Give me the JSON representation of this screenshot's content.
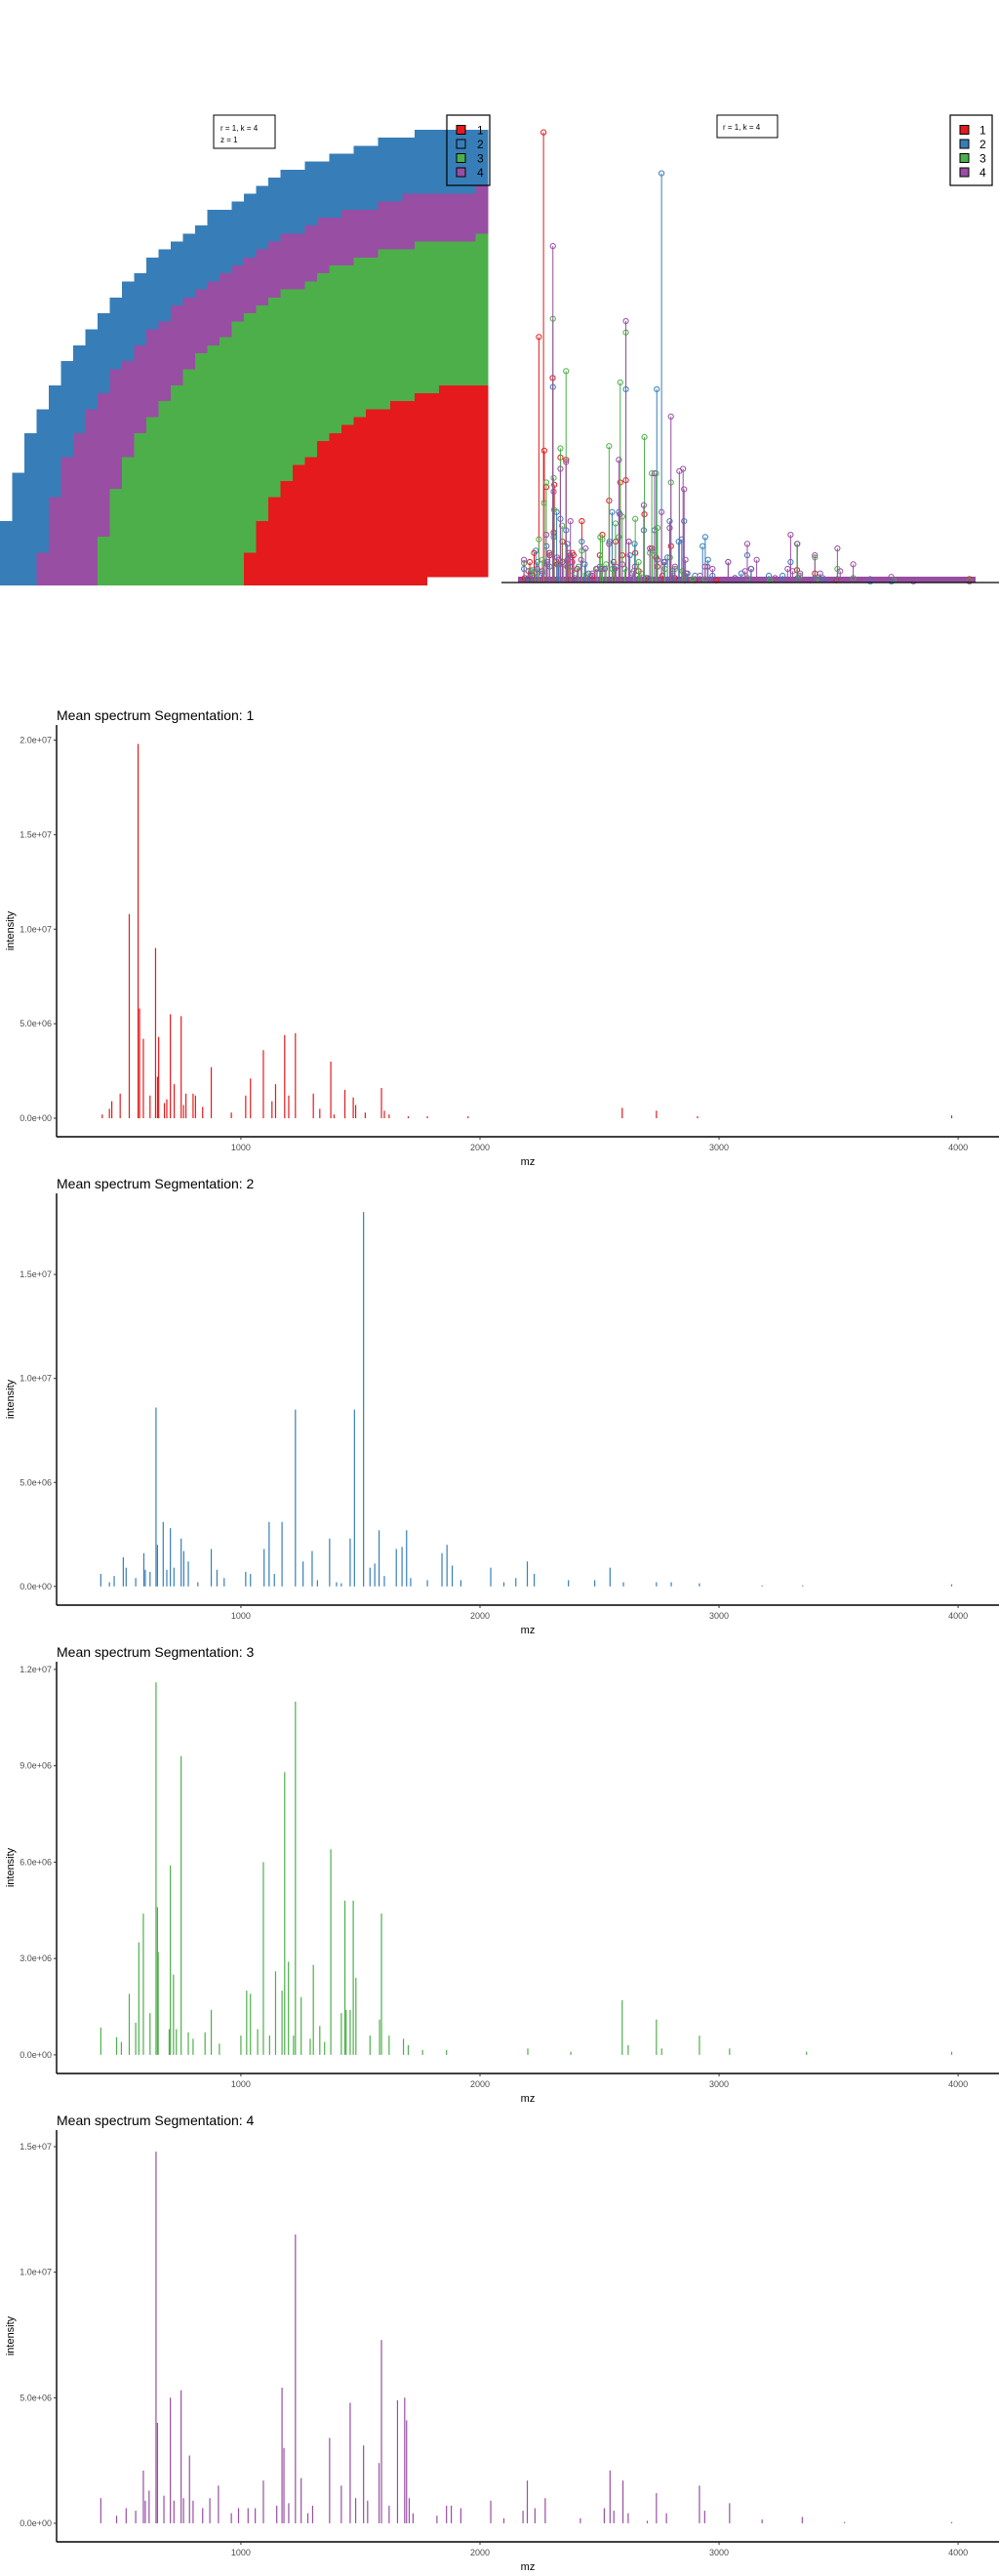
{
  "colors": {
    "1": "#E41A1C",
    "2": "#377EB8",
    "3": "#4DAF4A",
    "4": "#984EA3"
  },
  "segmentation_image": {
    "label_lines": [
      "r = 1, k = 4",
      "z = 1"
    ],
    "legend": [
      "1",
      "2",
      "3",
      "4"
    ]
  },
  "spectra_overlay": {
    "label": "r = 1, k = 4",
    "legend": [
      "1",
      "2",
      "3",
      "4"
    ]
  },
  "chart_data": [
    {
      "type": "bar",
      "segment": "1",
      "title": "Mean spectrum  Segmentation: 1",
      "xlabel": "mz",
      "ylabel": "intensity",
      "xlim": [
        229,
        4171
      ],
      "ylim": [
        -980000,
        20800000
      ],
      "x_ticks": [
        1000,
        2000,
        3000,
        4000
      ],
      "x_tick_labels": [
        "1000",
        "2000",
        "3000",
        "4000"
      ],
      "y_ticks": [
        0,
        5000000,
        10000000,
        15000000,
        20000000
      ],
      "y_tick_labels": [
        "0.0e+00",
        "5.0e+06",
        "1.0e+07",
        "1.5e+07",
        "2.0e+07"
      ],
      "peaks": [
        [
          420,
          200000.0
        ],
        [
          450,
          500000.0
        ],
        [
          460,
          900000.0
        ],
        [
          495,
          1300000.0
        ],
        [
          533,
          10800000.0
        ],
        [
          570,
          19800000.0
        ],
        [
          576,
          5800000.0
        ],
        [
          592,
          4200000.0
        ],
        [
          620,
          1200000.0
        ],
        [
          643,
          9000000.0
        ],
        [
          651,
          2200000.0
        ],
        [
          656,
          4300000.0
        ],
        [
          680,
          800000.0
        ],
        [
          690,
          1000000.0
        ],
        [
          705,
          5500000.0
        ],
        [
          721,
          1800000.0
        ],
        [
          750,
          5400000.0
        ],
        [
          760,
          700000.0
        ],
        [
          770,
          1300000.0
        ],
        [
          800,
          1300000.0
        ],
        [
          810,
          1200000.0
        ],
        [
          840,
          600000.0
        ],
        [
          876,
          2700000.0
        ],
        [
          960,
          300000.0
        ],
        [
          1020,
          1200000.0
        ],
        [
          1040,
          2100000.0
        ],
        [
          1094,
          3600000.0
        ],
        [
          1130,
          900000.0
        ],
        [
          1145,
          1800000.0
        ],
        [
          1183,
          4400000.0
        ],
        [
          1200,
          1200000.0
        ],
        [
          1228,
          4500000.0
        ],
        [
          1303,
          1300000.0
        ],
        [
          1330,
          500000.0
        ],
        [
          1376,
          3000000.0
        ],
        [
          1390,
          200000.0
        ],
        [
          1435,
          1500000.0
        ],
        [
          1470,
          1100000.0
        ],
        [
          1480,
          700000.0
        ],
        [
          1520,
          300000.0
        ],
        [
          1588,
          1600000.0
        ],
        [
          1600,
          400000.0
        ],
        [
          1620,
          200000.0
        ],
        [
          1700,
          100000.0
        ],
        [
          1780,
          100000.0
        ],
        [
          1950,
          100000.0
        ],
        [
          2595,
          550000.0
        ],
        [
          2738,
          400000.0
        ],
        [
          2910,
          100000.0
        ],
        [
          3973,
          150000.0
        ]
      ]
    },
    {
      "type": "bar",
      "segment": "2",
      "title": "Mean spectrum  Segmentation: 2",
      "xlabel": "mz",
      "ylabel": "intensity",
      "xlim": [
        229,
        4171
      ],
      "ylim": [
        -900000,
        18900000
      ],
      "x_ticks": [
        1000,
        2000,
        3000,
        4000
      ],
      "x_tick_labels": [
        "1000",
        "2000",
        "3000",
        "4000"
      ],
      "y_ticks": [
        0,
        5000000,
        10000000,
        15000000
      ],
      "y_tick_labels": [
        "0.0e+00",
        "5.0e+06",
        "1.0e+07",
        "1.5e+07"
      ],
      "peaks": [
        [
          414,
          600000.0
        ],
        [
          450,
          200000.0
        ],
        [
          470,
          500000.0
        ],
        [
          508,
          1400000.0
        ],
        [
          520,
          900000.0
        ],
        [
          560,
          400000.0
        ],
        [
          594,
          1600000.0
        ],
        [
          600,
          800000.0
        ],
        [
          620,
          700000.0
        ],
        [
          645,
          8600000.0
        ],
        [
          651,
          2000000.0
        ],
        [
          675,
          3100000.0
        ],
        [
          690,
          800000.0
        ],
        [
          705,
          2800000.0
        ],
        [
          720,
          900000.0
        ],
        [
          750,
          2300000.0
        ],
        [
          761,
          1700000.0
        ],
        [
          780,
          1200000.0
        ],
        [
          820,
          200000.0
        ],
        [
          876,
          1800000.0
        ],
        [
          900,
          800000.0
        ],
        [
          930,
          400000.0
        ],
        [
          1020,
          700000.0
        ],
        [
          1040,
          600000.0
        ],
        [
          1097,
          1800000.0
        ],
        [
          1118,
          3100000.0
        ],
        [
          1140,
          600000.0
        ],
        [
          1172,
          3100000.0
        ],
        [
          1228,
          8500000.0
        ],
        [
          1260,
          1200000.0
        ],
        [
          1298,
          1700000.0
        ],
        [
          1320,
          300000.0
        ],
        [
          1371,
          2300000.0
        ],
        [
          1400,
          200000.0
        ],
        [
          1420,
          150000.0
        ],
        [
          1457,
          2300000.0
        ],
        [
          1475,
          8500000.0
        ],
        [
          1513,
          18000000.0
        ],
        [
          1540,
          900000.0
        ],
        [
          1560,
          1100000.0
        ],
        [
          1578,
          2700000.0
        ],
        [
          1600,
          500000.0
        ],
        [
          1650,
          1800000.0
        ],
        [
          1674,
          1900000.0
        ],
        [
          1693,
          2700000.0
        ],
        [
          1710,
          400000.0
        ],
        [
          1780,
          300000.0
        ],
        [
          1841,
          1600000.0
        ],
        [
          1862,
          2000000.0
        ],
        [
          1884,
          1000000.0
        ],
        [
          1920,
          300000.0
        ],
        [
          2045,
          900000.0
        ],
        [
          2100,
          200000.0
        ],
        [
          2150,
          400000.0
        ],
        [
          2198,
          1200000.0
        ],
        [
          2227,
          600000.0
        ],
        [
          2370,
          300000.0
        ],
        [
          2480,
          300000.0
        ],
        [
          2544,
          900000.0
        ],
        [
          2600,
          200000.0
        ],
        [
          2738,
          200000.0
        ],
        [
          2800,
          200000.0
        ],
        [
          2918,
          150000.0
        ],
        [
          3180,
          50000.0
        ],
        [
          3350,
          50000.0
        ],
        [
          3973,
          100000.0
        ]
      ]
    },
    {
      "type": "bar",
      "segment": "3",
      "title": "Mean spectrum  Segmentation: 3",
      "xlabel": "mz",
      "ylabel": "intensity",
      "xlim": [
        229,
        4171
      ],
      "ylim": [
        -580000,
        12240000
      ],
      "x_ticks": [
        1000,
        2000,
        3000,
        4000
      ],
      "x_tick_labels": [
        "1000",
        "2000",
        "3000",
        "4000"
      ],
      "y_ticks": [
        0,
        3000000,
        6000000,
        9000000,
        12000000
      ],
      "y_tick_labels": [
        "0.0e+00",
        "3.0e+06",
        "6.0e+06",
        "9.0e+06",
        "1.2e+07"
      ],
      "peaks": [
        [
          414,
          850000.0
        ],
        [
          480,
          550000.0
        ],
        [
          500,
          400000.0
        ],
        [
          533,
          1900000.0
        ],
        [
          560,
          1000000.0
        ],
        [
          573,
          3500000.0
        ],
        [
          592,
          4400000.0
        ],
        [
          620,
          1300000.0
        ],
        [
          645,
          11600000.0
        ],
        [
          651,
          4600000.0
        ],
        [
          654,
          3200000.0
        ],
        [
          700,
          800000.0
        ],
        [
          705,
          5900000.0
        ],
        [
          718,
          2500000.0
        ],
        [
          730,
          800000.0
        ],
        [
          750,
          9300000.0
        ],
        [
          780,
          700000.0
        ],
        [
          800,
          500000.0
        ],
        [
          850,
          700000.0
        ],
        [
          876,
          1400000.0
        ],
        [
          910,
          350000.0
        ],
        [
          1000,
          600000.0
        ],
        [
          1024,
          2000000.0
        ],
        [
          1040,
          1900000.0
        ],
        [
          1070,
          800000.0
        ],
        [
          1094,
          6000000.0
        ],
        [
          1120,
          600000.0
        ],
        [
          1145,
          2600000.0
        ],
        [
          1172,
          2000000.0
        ],
        [
          1183,
          8800000.0
        ],
        [
          1199,
          2900000.0
        ],
        [
          1220,
          600000.0
        ],
        [
          1228,
          11000000.0
        ],
        [
          1252,
          1800000.0
        ],
        [
          1290,
          500000.0
        ],
        [
          1303,
          2800000.0
        ],
        [
          1330,
          900000.0
        ],
        [
          1350,
          400000.0
        ],
        [
          1376,
          6400000.0
        ],
        [
          1420,
          1300000.0
        ],
        [
          1435,
          4800000.0
        ],
        [
          1440,
          1400000.0
        ],
        [
          1457,
          1400000.0
        ],
        [
          1470,
          4800000.0
        ],
        [
          1481,
          2400000.0
        ],
        [
          1540,
          600000.0
        ],
        [
          1580,
          1100000.0
        ],
        [
          1588,
          4400000.0
        ],
        [
          1620,
          600000.0
        ],
        [
          1680,
          500000.0
        ],
        [
          1700,
          300000.0
        ],
        [
          1760,
          150000.0
        ],
        [
          1860,
          150000.0
        ],
        [
          2200,
          200000.0
        ],
        [
          2380,
          100000.0
        ],
        [
          2595,
          1700000.0
        ],
        [
          2620,
          300000.0
        ],
        [
          2738,
          1100000.0
        ],
        [
          2760,
          200000.0
        ],
        [
          2918,
          600000.0
        ],
        [
          3044,
          200000.0
        ],
        [
          3366,
          100000.0
        ],
        [
          3973,
          100000.0
        ]
      ]
    },
    {
      "type": "bar",
      "segment": "4",
      "title": "Mean spectrum  Segmentation: 4",
      "xlabel": "mz",
      "ylabel": "intensity",
      "xlim": [
        229,
        4171
      ],
      "ylim": [
        -740000,
        15660000
      ],
      "x_ticks": [
        1000,
        2000,
        3000,
        4000
      ],
      "x_tick_labels": [
        "1000",
        "2000",
        "3000",
        "4000"
      ],
      "y_ticks": [
        0,
        5000000,
        10000000,
        15000000
      ],
      "y_tick_labels": [
        "0.0e+00",
        "5.0e+06",
        "1.0e+07",
        "1.5e+07"
      ],
      "peaks": [
        [
          414,
          1000000.0
        ],
        [
          480,
          300000.0
        ],
        [
          520,
          600000.0
        ],
        [
          560,
          500000.0
        ],
        [
          592,
          2100000.0
        ],
        [
          600,
          900000.0
        ],
        [
          616,
          1300000.0
        ],
        [
          645,
          14800000.0
        ],
        [
          651,
          4000000.0
        ],
        [
          678,
          1100000.0
        ],
        [
          705,
          5000000.0
        ],
        [
          720,
          900000.0
        ],
        [
          750,
          5300000.0
        ],
        [
          760,
          1000000.0
        ],
        [
          785,
          2700000.0
        ],
        [
          800,
          900000.0
        ],
        [
          840,
          600000.0
        ],
        [
          870,
          1000000.0
        ],
        [
          906,
          1500000.0
        ],
        [
          960,
          400000.0
        ],
        [
          990,
          600000.0
        ],
        [
          1030,
          600000.0
        ],
        [
          1060,
          600000.0
        ],
        [
          1094,
          1700000.0
        ],
        [
          1150,
          700000.0
        ],
        [
          1172,
          5400000.0
        ],
        [
          1180,
          3000000.0
        ],
        [
          1200,
          800000.0
        ],
        [
          1228,
          11500000.0
        ],
        [
          1252,
          1800000.0
        ],
        [
          1280,
          400000.0
        ],
        [
          1300,
          700000.0
        ],
        [
          1371,
          3400000.0
        ],
        [
          1420,
          1500000.0
        ],
        [
          1457,
          4800000.0
        ],
        [
          1480,
          1000000.0
        ],
        [
          1513,
          3100000.0
        ],
        [
          1530,
          900000.0
        ],
        [
          1578,
          2400000.0
        ],
        [
          1588,
          7300000.0
        ],
        [
          1620,
          700000.0
        ],
        [
          1655,
          4900000.0
        ],
        [
          1685,
          5000000.0
        ],
        [
          1693,
          4100000.0
        ],
        [
          1704,
          1000000.0
        ],
        [
          1720,
          400000.0
        ],
        [
          1820,
          300000.0
        ],
        [
          1860,
          700000.0
        ],
        [
          1880,
          700000.0
        ],
        [
          1920,
          600000.0
        ],
        [
          2045,
          900000.0
        ],
        [
          2100,
          200000.0
        ],
        [
          2180,
          500000.0
        ],
        [
          2198,
          1700000.0
        ],
        [
          2230,
          600000.0
        ],
        [
          2273,
          1000000.0
        ],
        [
          2420,
          200000.0
        ],
        [
          2520,
          600000.0
        ],
        [
          2544,
          2100000.0
        ],
        [
          2560,
          500000.0
        ],
        [
          2598,
          1700000.0
        ],
        [
          2620,
          400000.0
        ],
        [
          2700,
          100000.0
        ],
        [
          2738,
          1200000.0
        ],
        [
          2780,
          400000.0
        ],
        [
          2918,
          1500000.0
        ],
        [
          2940,
          500000.0
        ],
        [
          3044,
          800000.0
        ],
        [
          3180,
          150000.0
        ],
        [
          3348,
          250000.0
        ],
        [
          3525,
          50000.0
        ],
        [
          3973,
          50000.0
        ]
      ]
    }
  ]
}
